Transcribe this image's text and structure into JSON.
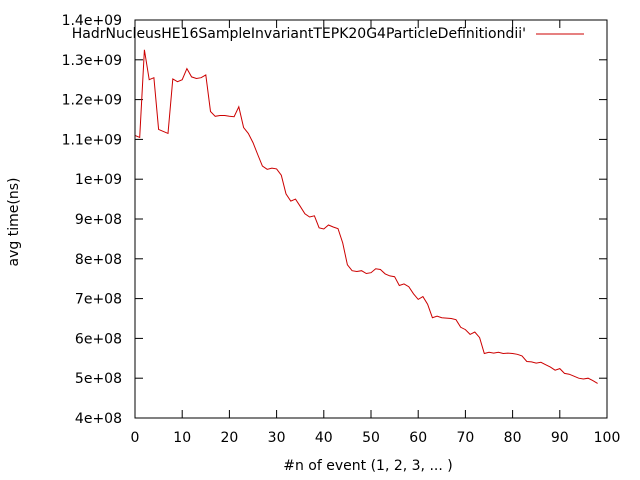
{
  "chart_data": {
    "type": "line",
    "xlabel": "#n of event (1, 2, 3, ... )",
    "ylabel": "avg time(ns)",
    "xlim": [
      0,
      100
    ],
    "ylim": [
      400000000,
      1400000000
    ],
    "xticks": [
      0,
      10,
      20,
      30,
      40,
      50,
      60,
      70,
      80,
      90,
      100
    ],
    "xtick_labels": [
      "0",
      "10",
      "20",
      "30",
      "40",
      "50",
      "60",
      "70",
      "80",
      "90",
      "100"
    ],
    "yticks": [
      400000000,
      500000000,
      600000000,
      700000000,
      800000000,
      900000000,
      1000000000,
      1100000000,
      1200000000,
      1300000000,
      1400000000
    ],
    "ytick_labels": [
      "4e+08",
      "5e+08",
      "6e+08",
      "7e+08",
      "8e+08",
      "9e+08",
      "1e+09",
      "1.1e+09",
      "1.2e+09",
      "1.3e+09",
      "1.4e+09"
    ],
    "grid": false,
    "legend_position": "top-right",
    "colors": {
      "series": "#cc0000",
      "axis": "#000000"
    },
    "series": [
      {
        "name": "HadrNucleusHE16SampleInvariantTEPK20G4ParticleDefinitiondii'",
        "x": [
          0,
          1,
          2,
          3,
          4,
          5,
          6,
          7,
          8,
          9,
          10,
          11,
          12,
          13,
          14,
          15,
          16,
          17,
          18,
          19,
          20,
          21,
          22,
          23,
          24,
          25,
          26,
          27,
          28,
          29,
          30,
          31,
          32,
          33,
          34,
          35,
          36,
          37,
          38,
          39,
          40,
          41,
          42,
          43,
          44,
          45,
          46,
          47,
          48,
          49,
          50,
          51,
          52,
          53,
          54,
          55,
          56,
          57,
          58,
          59,
          60,
          61,
          62,
          63,
          64,
          65,
          66,
          67,
          68,
          69,
          70,
          71,
          72,
          73,
          74,
          75,
          76,
          77,
          78,
          79,
          80,
          81,
          82,
          83,
          84,
          85,
          86,
          87,
          88,
          89,
          90,
          91,
          92,
          93,
          94,
          95,
          96,
          97,
          98
        ],
        "values": [
          1110000000,
          1105000000,
          1325000000,
          1250000000,
          1255000000,
          1125000000,
          1120000000,
          1115000000,
          1252000000,
          1245000000,
          1250000000,
          1278000000,
          1257000000,
          1253000000,
          1255000000,
          1262000000,
          1170000000,
          1158000000,
          1160000000,
          1160000000,
          1158000000,
          1157000000,
          1182000000,
          1130000000,
          1115000000,
          1092000000,
          1062000000,
          1033000000,
          1025000000,
          1028000000,
          1026000000,
          1010000000,
          963000000,
          945000000,
          950000000,
          932000000,
          913000000,
          905000000,
          908000000,
          878000000,
          875000000,
          885000000,
          880000000,
          876000000,
          840000000,
          785000000,
          770000000,
          768000000,
          770000000,
          763000000,
          765000000,
          775000000,
          773000000,
          762000000,
          757000000,
          755000000,
          733000000,
          737000000,
          730000000,
          712000000,
          698000000,
          705000000,
          686000000,
          652000000,
          656000000,
          652000000,
          651000000,
          650000000,
          647000000,
          628000000,
          622000000,
          610000000,
          616000000,
          602000000,
          562000000,
          565000000,
          563000000,
          565000000,
          562000000,
          563000000,
          562000000,
          560000000,
          556000000,
          542000000,
          541000000,
          538000000,
          540000000,
          534000000,
          528000000,
          520000000,
          524000000,
          512000000,
          510000000,
          505000000,
          500000000,
          498000000,
          500000000,
          494000000,
          487000000
        ]
      }
    ]
  }
}
